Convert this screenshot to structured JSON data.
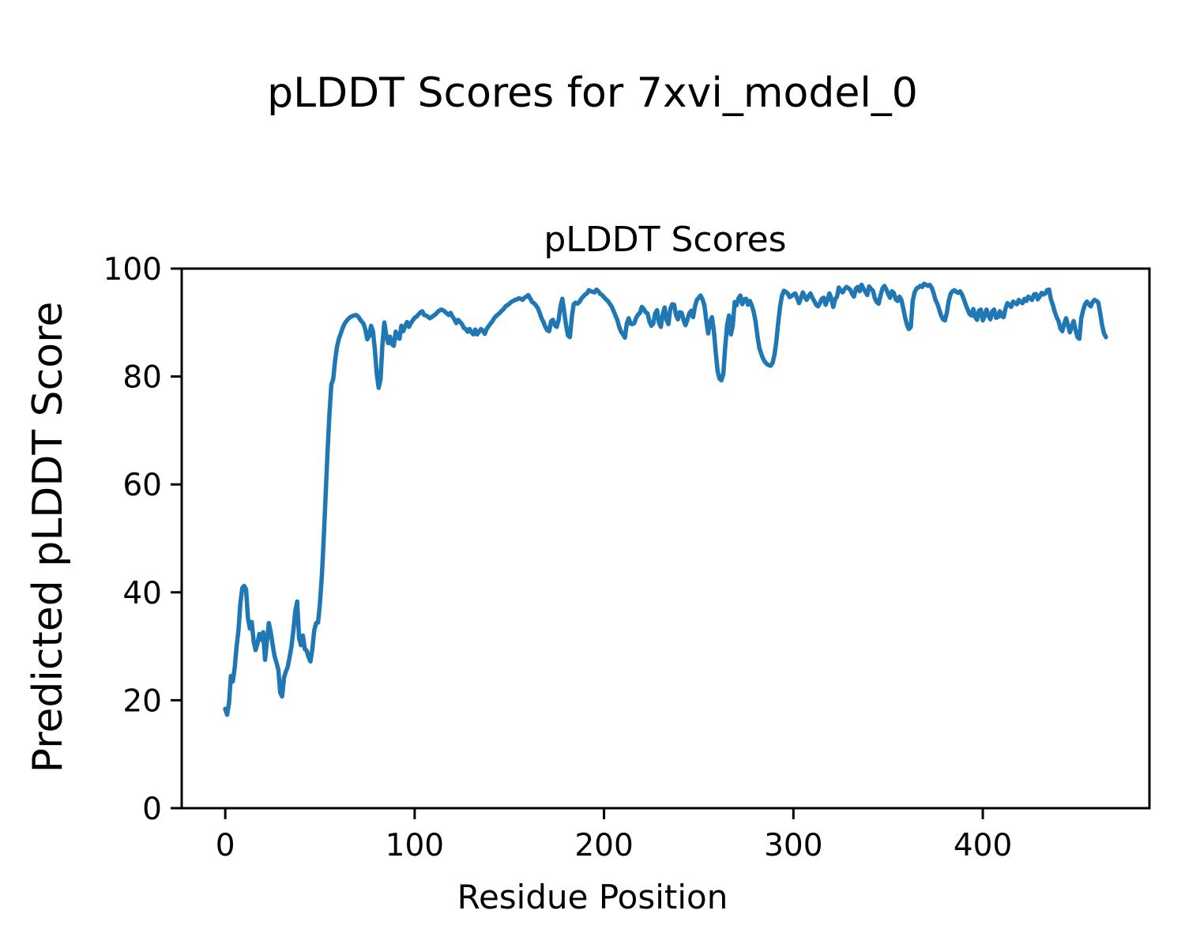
{
  "figure": {
    "suptitle": "pLDDT Scores for 7xvi_model_0",
    "background": "#ffffff",
    "text_color": "#000000"
  },
  "chart_data": {
    "type": "line",
    "title": "pLDDT Scores",
    "xlabel": "Residue Position",
    "ylabel": "Predicted pLDDT Score",
    "xticks": [
      0,
      100,
      200,
      300,
      400
    ],
    "yticks": [
      0,
      20,
      40,
      60,
      80,
      100
    ],
    "xlim": [
      -23,
      488
    ],
    "ylim": [
      0,
      100
    ],
    "grid": false,
    "series": [
      {
        "name": "pLDDT",
        "color": "#1f77b4",
        "x_start": 0,
        "x_step": 1,
        "values": [
          18.4,
          17.3,
          19.5,
          24.5,
          23.5,
          26.0,
          30.0,
          33.0,
          38.0,
          40.8,
          41.2,
          40.5,
          35.2,
          33.3,
          34.5,
          30.9,
          29.3,
          30.5,
          32.3,
          31.2,
          32.6,
          27.5,
          31.0,
          34.3,
          32.6,
          30.3,
          28.2,
          27.0,
          25.7,
          21.4,
          20.7,
          24.2,
          25.3,
          26.2,
          28.0,
          30.0,
          33.0,
          36.5,
          38.3,
          31.5,
          30.2,
          32.0,
          29.5,
          29.2,
          28.0,
          27.2,
          29.5,
          33.0,
          34.3,
          34.4,
          38.0,
          43.0,
          50.0,
          58.0,
          66.0,
          73.0,
          78.5,
          79.5,
          83.0,
          85.5,
          87.0,
          88.0,
          89.0,
          89.8,
          90.3,
          90.7,
          91.0,
          91.2,
          91.3,
          91.4,
          91.2,
          90.7,
          90.2,
          89.8,
          88.7,
          86.9,
          87.5,
          89.4,
          88.4,
          85.0,
          80.5,
          77.9,
          79.5,
          86.0,
          90.0,
          87.7,
          86.2,
          87.4,
          86.0,
          85.7,
          88.3,
          87.2,
          87.0,
          89.4,
          88.4,
          89.4,
          90.1,
          89.2,
          89.9,
          90.4,
          90.9,
          91.1,
          91.5,
          91.9,
          92.1,
          91.4,
          91.3,
          91.1,
          90.8,
          91.0,
          91.3,
          91.5,
          91.9,
          92.2,
          92.4,
          92.3,
          92.0,
          91.7,
          91.4,
          91.8,
          91.1,
          90.6,
          89.9,
          90.5,
          90.1,
          89.7,
          89.0,
          88.8,
          88.3,
          88.8,
          88.2,
          87.8,
          88.7,
          87.8,
          88.3,
          88.8,
          88.5,
          87.9,
          88.8,
          89.3,
          89.8,
          90.2,
          90.8,
          91.2,
          91.5,
          91.8,
          92.2,
          92.5,
          93.0,
          93.2,
          93.5,
          93.8,
          94.0,
          94.2,
          94.3,
          94.5,
          94.4,
          94.2,
          94.6,
          94.8,
          95.1,
          94.5,
          93.8,
          93.6,
          93.2,
          92.7,
          91.8,
          90.8,
          90.1,
          89.2,
          88.6,
          88.4,
          90.2,
          90.5,
          89.5,
          89.2,
          90.5,
          93.0,
          94.4,
          92.0,
          89.4,
          87.6,
          87.3,
          91.0,
          93.4,
          93.7,
          93.5,
          93.8,
          94.4,
          94.8,
          95.2,
          95.4,
          96.0,
          95.8,
          95.7,
          95.6,
          96.1,
          95.8,
          95.3,
          95.1,
          94.7,
          94.3,
          94.0,
          93.5,
          93.0,
          92.2,
          91.3,
          90.5,
          89.2,
          88.3,
          87.8,
          87.2,
          89.8,
          90.8,
          89.8,
          89.7,
          89.9,
          90.9,
          91.5,
          91.8,
          92.9,
          92.5,
          91.9,
          91.7,
          90.2,
          89.4,
          89.8,
          91.7,
          92.3,
          90.0,
          89.2,
          91.5,
          92.8,
          90.5,
          89.7,
          92.5,
          93.4,
          93.3,
          91.4,
          90.6,
          91.9,
          91.8,
          90.4,
          89.5,
          90.5,
          91.7,
          92.2,
          91.0,
          93.0,
          94.2,
          94.6,
          95.0,
          94.3,
          93.2,
          90.5,
          88.0,
          90.0,
          91.0,
          88.5,
          84.5,
          81.0,
          79.6,
          79.3,
          80.5,
          85.5,
          89.5,
          91.3,
          87.8,
          89.5,
          93.8,
          93.2,
          94.5,
          95.0,
          93.4,
          94.3,
          94.4,
          93.3,
          94.0,
          93.2,
          92.0,
          90.2,
          87.5,
          85.3,
          84.2,
          83.3,
          82.7,
          82.3,
          82.1,
          82.0,
          82.5,
          84.0,
          86.5,
          90.0,
          93.0,
          95.0,
          95.9,
          95.7,
          95.4,
          94.7,
          94.9,
          95.2,
          95.4,
          94.5,
          93.6,
          94.6,
          95.6,
          94.8,
          94.2,
          94.9,
          95.4,
          94.6,
          94.0,
          93.3,
          93.0,
          93.6,
          94.4,
          94.6,
          93.3,
          94.2,
          95.4,
          94.5,
          92.9,
          94.3,
          94.8,
          96.5,
          95.9,
          95.6,
          96.2,
          96.6,
          96.4,
          96.1,
          95.3,
          94.8,
          96.3,
          96.6,
          95.8,
          97.0,
          96.3,
          95.7,
          95.1,
          96.7,
          96.2,
          95.9,
          94.5,
          93.8,
          93.5,
          95.0,
          96.3,
          96.8,
          96.2,
          95.3,
          94.6,
          95.8,
          95.5,
          94.3,
          94.0,
          94.8,
          94.2,
          92.6,
          90.9,
          89.5,
          88.8,
          89.2,
          94.0,
          95.6,
          96.3,
          96.5,
          96.8,
          96.6,
          97.2,
          97.0,
          96.8,
          97.0,
          96.5,
          95.5,
          94.2,
          93.5,
          92.4,
          91.3,
          90.6,
          90.4,
          91.8,
          94.0,
          95.3,
          95.8,
          96.0,
          95.7,
          95.5,
          95.8,
          95.2,
          94.3,
          93.3,
          92.4,
          91.6,
          91.3,
          92.5,
          91.0,
          90.5,
          92.2,
          92.4,
          90.4,
          91.2,
          92.4,
          91.3,
          90.6,
          92.1,
          92.4,
          90.9,
          91.0,
          92.1,
          91.2,
          91.0,
          92.6,
          93.6,
          93.3,
          92.9,
          93.9,
          93.6,
          93.4,
          94.2,
          93.8,
          93.6,
          94.4,
          94.0,
          94.8,
          94.5,
          94.2,
          95.2,
          95.3,
          94.3,
          94.8,
          95.5,
          95.2,
          95.4,
          96.0,
          96.1,
          94.3,
          93.3,
          92.0,
          91.0,
          90.3,
          88.9,
          88.4,
          89.8,
          90.8,
          89.5,
          88.2,
          89.3,
          90.3,
          88.6,
          87.3,
          87.0,
          90.8,
          92.3,
          93.4,
          93.9,
          93.4,
          93.0,
          93.8,
          94.2,
          94.0,
          93.7,
          91.7,
          89.5,
          88.0,
          87.3
        ]
      }
    ]
  }
}
